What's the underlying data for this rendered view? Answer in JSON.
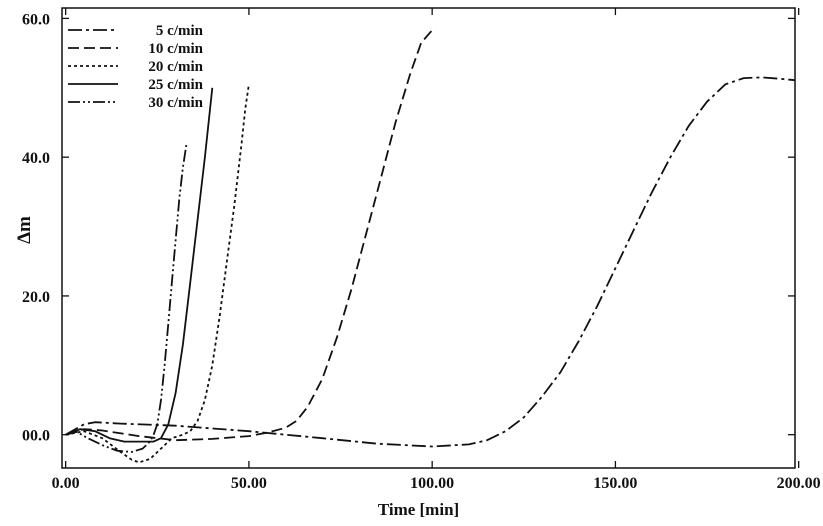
{
  "chart_data": {
    "type": "line",
    "title": "",
    "xlabel": "Time  [min]",
    "ylabel": "Δm",
    "xlim": [
      -1,
      199
    ],
    "ylim": [
      -4.8,
      61.5
    ],
    "grid": false,
    "legend_position": "top-left",
    "x_ticks": [
      {
        "value": 0,
        "label": "0.00"
      },
      {
        "value": 50,
        "label": "50.00"
      },
      {
        "value": 100,
        "label": "100.00"
      },
      {
        "value": 150,
        "label": "150.00"
      },
      {
        "value": 200,
        "label": "200.00"
      }
    ],
    "y_ticks": [
      {
        "value": 0,
        "label": "00.0"
      },
      {
        "value": 20,
        "label": "20.0"
      },
      {
        "value": 40,
        "label": "40.0"
      },
      {
        "value": 60,
        "label": "60.0"
      }
    ],
    "series": [
      {
        "name": "5 c/min",
        "dash": "14,4,3,4",
        "color": "#111111",
        "points": [
          [
            0,
            0
          ],
          [
            5,
            1.5
          ],
          [
            8,
            1.8
          ],
          [
            15,
            1.6
          ],
          [
            30,
            1.3
          ],
          [
            50,
            0.5
          ],
          [
            70,
            -0.5
          ],
          [
            85,
            -1.3
          ],
          [
            100,
            -1.7
          ],
          [
            110,
            -1.4
          ],
          [
            115,
            -0.8
          ],
          [
            120,
            0.5
          ],
          [
            125,
            2.5
          ],
          [
            130,
            5.5
          ],
          [
            135,
            9
          ],
          [
            140,
            13.5
          ],
          [
            145,
            18.5
          ],
          [
            150,
            24
          ],
          [
            155,
            29.5
          ],
          [
            160,
            35
          ],
          [
            165,
            40
          ],
          [
            170,
            44.5
          ],
          [
            175,
            48
          ],
          [
            180,
            50.5
          ],
          [
            185,
            51.4
          ],
          [
            190,
            51.5
          ],
          [
            195,
            51.3
          ],
          [
            199,
            51.1
          ]
        ]
      },
      {
        "name": "10 c/min",
        "dash": "11,5",
        "color": "#111111",
        "points": [
          [
            0,
            0
          ],
          [
            5,
            0.8
          ],
          [
            10,
            0.6
          ],
          [
            20,
            -0.2
          ],
          [
            30,
            -0.8
          ],
          [
            40,
            -0.6
          ],
          [
            50,
            -0.2
          ],
          [
            55,
            0.3
          ],
          [
            60,
            1
          ],
          [
            63,
            2
          ],
          [
            66,
            4
          ],
          [
            70,
            8
          ],
          [
            74,
            14
          ],
          [
            78,
            21
          ],
          [
            82,
            29
          ],
          [
            86,
            37
          ],
          [
            90,
            45
          ],
          [
            94,
            52
          ],
          [
            97,
            56.5
          ],
          [
            100,
            58.3
          ],
          [
            101,
            58.5
          ]
        ]
      },
      {
        "name": "20 c/min",
        "dash": "3,3",
        "color": "#111111",
        "points": [
          [
            0,
            0
          ],
          [
            5,
            0.5
          ],
          [
            10,
            -0.5
          ],
          [
            15,
            -2.5
          ],
          [
            18,
            -3.6
          ],
          [
            20,
            -4
          ],
          [
            23,
            -3.5
          ],
          [
            26,
            -2
          ],
          [
            29,
            -0.5
          ],
          [
            32,
            0
          ],
          [
            34,
            0.5
          ],
          [
            36,
            2
          ],
          [
            38,
            5
          ],
          [
            40,
            10
          ],
          [
            42,
            17
          ],
          [
            44,
            25
          ],
          [
            46,
            33
          ],
          [
            48,
            42
          ],
          [
            49,
            47
          ],
          [
            50,
            50.5
          ]
        ]
      },
      {
        "name": "25 c/min",
        "dash": "",
        "color": "#111111",
        "points": [
          [
            0,
            0
          ],
          [
            4,
            0.8
          ],
          [
            8,
            0.5
          ],
          [
            12,
            -0.5
          ],
          [
            16,
            -1
          ],
          [
            20,
            -1
          ],
          [
            24,
            -1
          ],
          [
            26,
            -0.5
          ],
          [
            28,
            1.5
          ],
          [
            30,
            6
          ],
          [
            32,
            13
          ],
          [
            34,
            22
          ],
          [
            36,
            31
          ],
          [
            38,
            40
          ],
          [
            39,
            45
          ],
          [
            40,
            50
          ]
        ]
      },
      {
        "name": "30 c/min",
        "dash": "12,3,2,3,2,3",
        "color": "#111111",
        "points": [
          [
            0,
            0
          ],
          [
            3,
            0.4
          ],
          [
            6,
            -0.5
          ],
          [
            10,
            -1.5
          ],
          [
            14,
            -2.3
          ],
          [
            18,
            -2.5
          ],
          [
            21,
            -2
          ],
          [
            23,
            -1
          ],
          [
            24,
            0
          ],
          [
            25,
            1.5
          ],
          [
            26,
            5
          ],
          [
            27,
            10
          ],
          [
            28,
            16
          ],
          [
            29,
            22
          ],
          [
            30,
            28
          ],
          [
            31,
            34
          ],
          [
            32,
            38.5
          ],
          [
            33,
            42
          ]
        ]
      }
    ]
  }
}
